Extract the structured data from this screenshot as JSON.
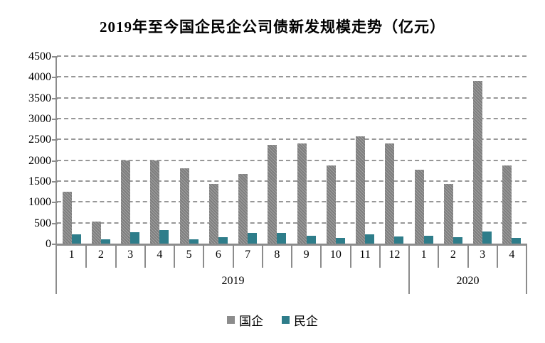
{
  "title": "2019年至今国企民企公司债新发规模走势（亿元）",
  "legend": {
    "items": [
      {
        "label": "国企",
        "color": "#8c8c8c"
      },
      {
        "label": "民企",
        "color": "#2e7d8a"
      }
    ]
  },
  "colors": {
    "guoqi_bar": "#8c8c8c",
    "minqi_bar": "#2e7d8a",
    "gridline": "#979797",
    "axis": "#8c8c8c",
    "text": "#000000"
  },
  "chart_data": {
    "type": "bar",
    "title": "2019年至今国企民企公司债新发规模走势（亿元）",
    "unit": "亿元",
    "categories": [
      "1",
      "2",
      "3",
      "4",
      "5",
      "6",
      "7",
      "8",
      "9",
      "10",
      "11",
      "12",
      "1",
      "2",
      "3",
      "4"
    ],
    "year_groups": [
      {
        "label": "2019",
        "start": 0,
        "count": 12
      },
      {
        "label": "2020",
        "start": 12,
        "count": 4
      }
    ],
    "series": [
      {
        "name": "国企",
        "color": "#8c8c8c",
        "values": [
          1250,
          520,
          2000,
          2000,
          1800,
          1430,
          1670,
          2370,
          2400,
          1870,
          2580,
          2400,
          1780,
          1430,
          3900,
          1870
        ]
      },
      {
        "name": "民企",
        "color": "#2e7d8a",
        "values": [
          220,
          100,
          280,
          330,
          110,
          150,
          260,
          260,
          190,
          140,
          220,
          170,
          180,
          150,
          290,
          140
        ]
      }
    ],
    "ylim": [
      0,
      4500
    ],
    "ytick_step": 500,
    "yticks": [
      0,
      500,
      1000,
      1500,
      2000,
      2500,
      3000,
      3500,
      4000,
      4500
    ],
    "grid": "horizontal-dashed",
    "legend_position": "bottom"
  }
}
